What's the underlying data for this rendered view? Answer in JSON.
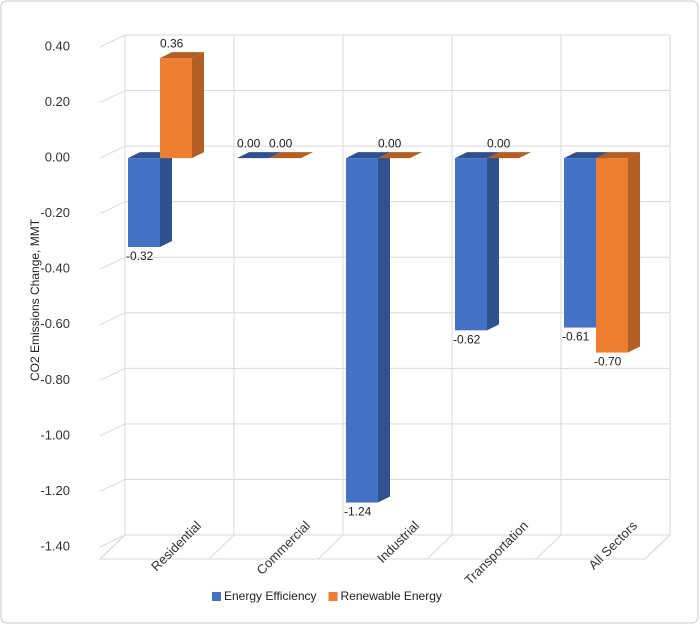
{
  "chart_data": {
    "type": "bar3d",
    "y_label": "CO2 Emissions Change, MMT",
    "categories": [
      "Residential",
      "Commercial",
      "Industrial",
      "Transportation",
      "All Sectors"
    ],
    "series": [
      {
        "name": "Energy Efficiency",
        "color": "#4472c4",
        "side_color": "#2f528f",
        "values": [
          -0.32,
          0,
          -1.24,
          -0.62,
          -0.61
        ],
        "value_labels": [
          "-0.32",
          "0.00",
          "-1.24",
          "-0.62",
          "-0.61"
        ]
      },
      {
        "name": "Renewable Energy",
        "color": "#ed7d31",
        "side_color": "#b35e22",
        "values": [
          0.36,
          0,
          0,
          0,
          -0.7
        ],
        "value_labels": [
          "0.36",
          "0.00",
          "0.00",
          "0.00",
          "-0.70"
        ]
      }
    ],
    "ylim": [
      -1.4,
      0.4
    ],
    "yticks": [
      {
        "value": 0.4,
        "label": "0.40"
      },
      {
        "value": 0.2,
        "label": "0.20"
      },
      {
        "value": 0,
        "label": "0.00"
      },
      {
        "value": -0.2,
        "label": "-0.20"
      },
      {
        "value": -0.4,
        "label": "-0.40"
      },
      {
        "value": -0.6,
        "label": "-0.60"
      },
      {
        "value": -0.8,
        "label": "-0.80"
      },
      {
        "value": -1,
        "label": "-1.00"
      },
      {
        "value": -1.2,
        "label": "-1.20"
      },
      {
        "value": -1.4,
        "label": "-1.40"
      }
    ],
    "grid": true,
    "legend": "bottom"
  }
}
